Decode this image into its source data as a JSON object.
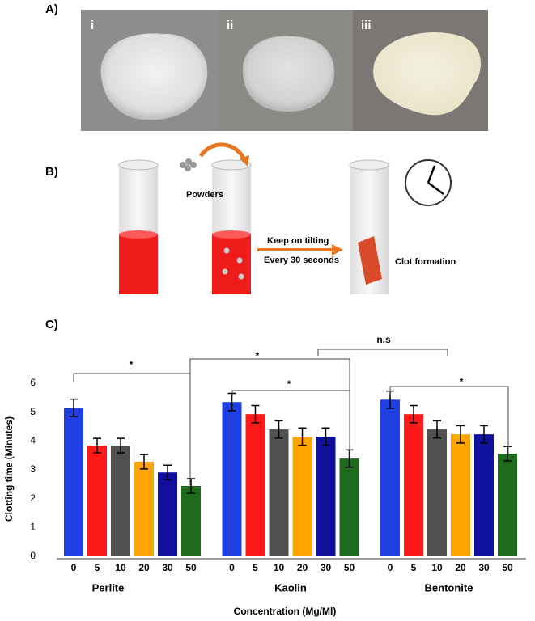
{
  "panel_labels": [
    "A)",
    "B)",
    "C)"
  ],
  "photo_labels": [
    "i",
    "ii",
    "iii"
  ],
  "diagram": {
    "powders": "Powders",
    "step_1": "Keep on tilting",
    "step_2": "Every 30 seconds",
    "result": "Clot formation"
  },
  "chart_data": {
    "type": "bar",
    "y_label": "Clotting time (Minutes)",
    "x_label": "Concentration (Mg/Ml)",
    "categories": [
      "Perlite",
      "Kaolin",
      "Bentonite"
    ],
    "series": [
      {
        "name": "0",
        "color": "#1f3fe0",
        "values": [
          5.15,
          5.35,
          5.43
        ],
        "errors": [
          0.3,
          0.3,
          0.3
        ]
      },
      {
        "name": "5",
        "color": "#ff1a1a",
        "values": [
          3.84,
          4.93,
          4.93
        ],
        "errors": [
          0.25,
          0.3,
          0.3
        ]
      },
      {
        "name": "10",
        "color": "#505050",
        "values": [
          3.84,
          4.4,
          4.4
        ],
        "errors": [
          0.25,
          0.3,
          0.3
        ]
      },
      {
        "name": "20",
        "color": "#ffa500",
        "values": [
          3.28,
          4.15,
          4.23
        ],
        "errors": [
          0.25,
          0.3,
          0.3
        ]
      },
      {
        "name": "30",
        "color": "#10109e",
        "values": [
          2.91,
          4.15,
          4.23
        ],
        "errors": [
          0.25,
          0.3,
          0.3
        ]
      },
      {
        "name": "50",
        "color": "#1e6b1e",
        "values": [
          2.44,
          3.39,
          3.56
        ],
        "errors": [
          0.25,
          0.3,
          0.25
        ]
      }
    ],
    "ylim": [
      0,
      6
    ],
    "yticks": [
      0,
      1,
      2,
      3,
      4,
      5,
      6
    ],
    "annotations": [
      "*",
      "*",
      "*",
      "n.s",
      "*"
    ]
  }
}
